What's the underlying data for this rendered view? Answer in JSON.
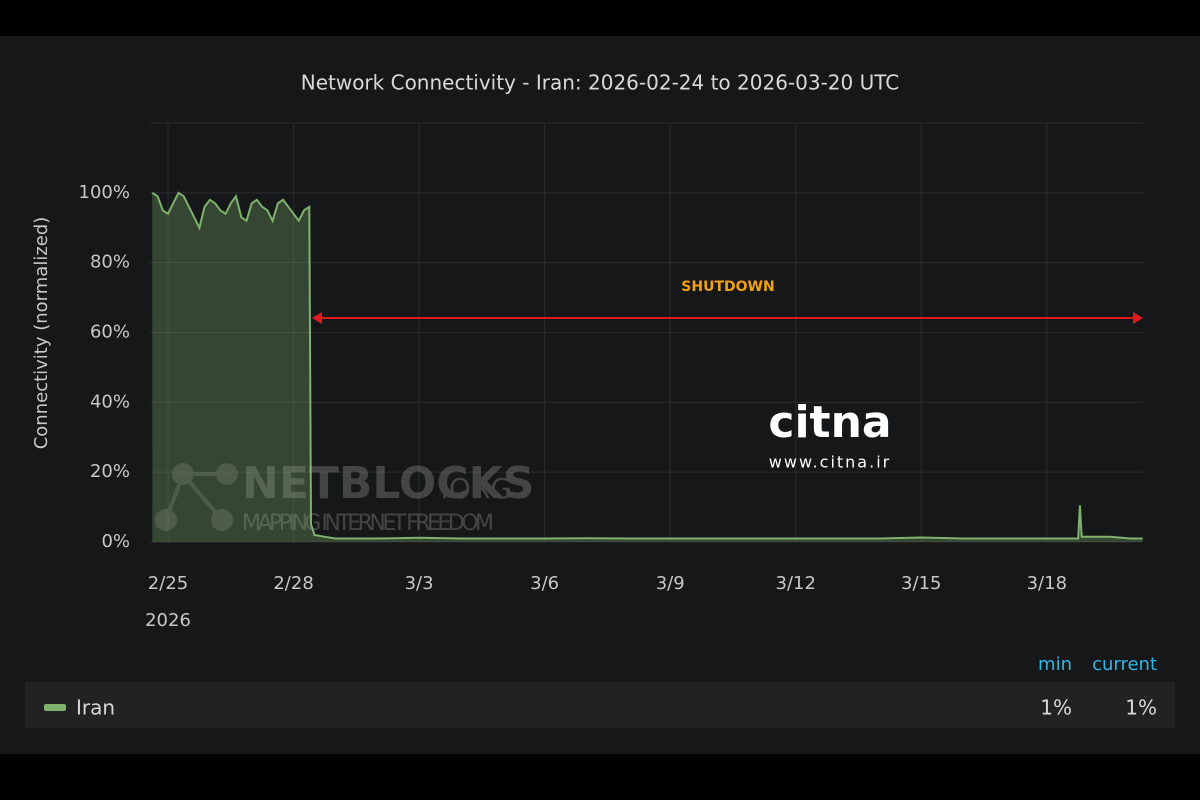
{
  "chart_data": {
    "type": "line",
    "title": "Network Connectivity - Iran: 2026-02-24 to 2026-03-20 UTC",
    "y_label": "Connectivity (normalized)",
    "x_year_label": "2026",
    "x": [
      "2026-02-24T15:00",
      "2026-02-24T18:00",
      "2026-02-24T21:00",
      "2026-02-25T00:00",
      "2026-02-25T03:00",
      "2026-02-25T06:00",
      "2026-02-25T09:00",
      "2026-02-25T12:00",
      "2026-02-25T15:00",
      "2026-02-25T18:00",
      "2026-02-25T21:00",
      "2026-02-26T00:00",
      "2026-02-26T03:00",
      "2026-02-26T06:00",
      "2026-02-26T09:00",
      "2026-02-26T12:00",
      "2026-02-26T15:00",
      "2026-02-26T18:00",
      "2026-02-26T21:00",
      "2026-02-27T00:00",
      "2026-02-27T03:00",
      "2026-02-27T06:00",
      "2026-02-27T09:00",
      "2026-02-27T12:00",
      "2026-02-27T15:00",
      "2026-02-27T18:00",
      "2026-02-27T21:00",
      "2026-02-28T00:00",
      "2026-02-28T03:00",
      "2026-02-28T06:00",
      "2026-02-28T09:00",
      "2026-02-28T10:00",
      "2026-02-28T12:00",
      "2026-02-28T18:00",
      "2026-03-01T00:00",
      "2026-03-02T00:00",
      "2026-03-03T00:00",
      "2026-03-04T00:00",
      "2026-03-05T00:00",
      "2026-03-06T00:00",
      "2026-03-07T00:00",
      "2026-03-08T00:00",
      "2026-03-09T00:00",
      "2026-03-10T00:00",
      "2026-03-11T00:00",
      "2026-03-12T00:00",
      "2026-03-13T00:00",
      "2026-03-14T00:00",
      "2026-03-15T00:00",
      "2026-03-16T00:00",
      "2026-03-17T00:00",
      "2026-03-18T00:00",
      "2026-03-18T18:00",
      "2026-03-18T19:00",
      "2026-03-18T20:00",
      "2026-03-19T00:00",
      "2026-03-19T12:00",
      "2026-03-20T00:00",
      "2026-03-20T07:00"
    ],
    "series": [
      {
        "name": "Iran",
        "color": "#7eb26d",
        "values": [
          100,
          99,
          95,
          94,
          97,
          100,
          99,
          96,
          93,
          90,
          96,
          98,
          97,
          95,
          94,
          97,
          99,
          93,
          92,
          97,
          98,
          96,
          95,
          92,
          97,
          98,
          96,
          94,
          92,
          95,
          96,
          5,
          2,
          1.5,
          1,
          1,
          1.2,
          1,
          1,
          1,
          1.1,
          1,
          1,
          1,
          1,
          1,
          1,
          1,
          1.3,
          1,
          1,
          1,
          1,
          10.5,
          1.5,
          1.5,
          1.5,
          1,
          1
        ],
        "stats": [
          1,
          1
        ],
        "stats_labels": [
          "1%",
          "1%"
        ]
      }
    ],
    "legend_columns": [
      "min",
      "current"
    ],
    "xlim": [
      "2026-02-24T13:40",
      "2026-03-20T07:10"
    ],
    "xticks": [
      {
        "value": "2026-02-25",
        "label": "2/25"
      },
      {
        "value": "2026-02-28",
        "label": "2/28"
      },
      {
        "value": "2026-03-03",
        "label": "3/3"
      },
      {
        "value": "2026-03-06",
        "label": "3/6"
      },
      {
        "value": "2026-03-09",
        "label": "3/9"
      },
      {
        "value": "2026-03-12",
        "label": "3/12"
      },
      {
        "value": "2026-03-15",
        "label": "3/15"
      },
      {
        "value": "2026-03-18",
        "label": "3/18"
      }
    ],
    "ylim": [
      0,
      120
    ],
    "yticks": [
      {
        "value": 0,
        "label": "0%"
      },
      {
        "value": 20,
        "label": "20%"
      },
      {
        "value": 40,
        "label": "40%"
      },
      {
        "value": 60,
        "label": "60%"
      },
      {
        "value": 80,
        "label": "80%"
      },
      {
        "value": 100,
        "label": "100%"
      }
    ],
    "grid": true,
    "annotation": {
      "text": "SHUTDOWN",
      "color": "#f2a20f",
      "arrow_color": "#e0191f"
    },
    "watermarks": [
      "NETBLOCKS",
      ".ORG",
      "MAPPING INTERNET FREEDOM",
      "citna",
      "www.citna.ir"
    ]
  }
}
